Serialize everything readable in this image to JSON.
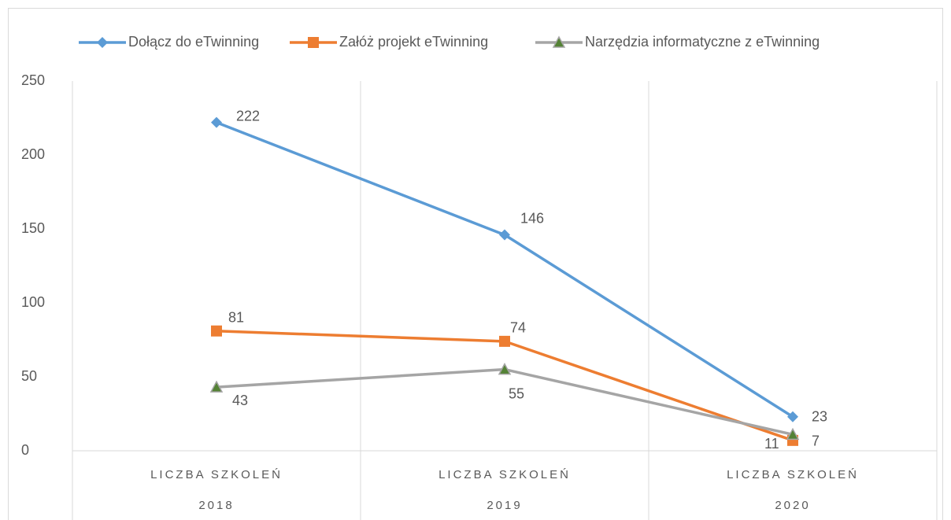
{
  "chart_data": {
    "type": "line",
    "categories": [
      [
        "LICZBA SZKOLEŃ",
        "2018"
      ],
      [
        "LICZBA SZKOLEŃ",
        "2019"
      ],
      [
        "LICZBA SZKOLEŃ",
        "2020"
      ]
    ],
    "series": [
      {
        "name": "Dołącz do eTwinning",
        "color": "#5b9bd5",
        "marker": "diamond",
        "values": [
          222,
          146,
          23
        ]
      },
      {
        "name": "Załóż projekt eTwinning",
        "color": "#ed7d31",
        "marker": "square",
        "values": [
          81,
          74,
          7
        ]
      },
      {
        "name": "Narzędzia informatyczne z eTwinning",
        "color": "#a5a5a5",
        "marker": "triangle",
        "marker_color": "#548235",
        "values": [
          43,
          55,
          11
        ]
      }
    ],
    "ylim": [
      0,
      250
    ],
    "yticks": [
      0,
      50,
      100,
      150,
      200,
      250
    ],
    "legend": "top",
    "data_labels": true
  }
}
